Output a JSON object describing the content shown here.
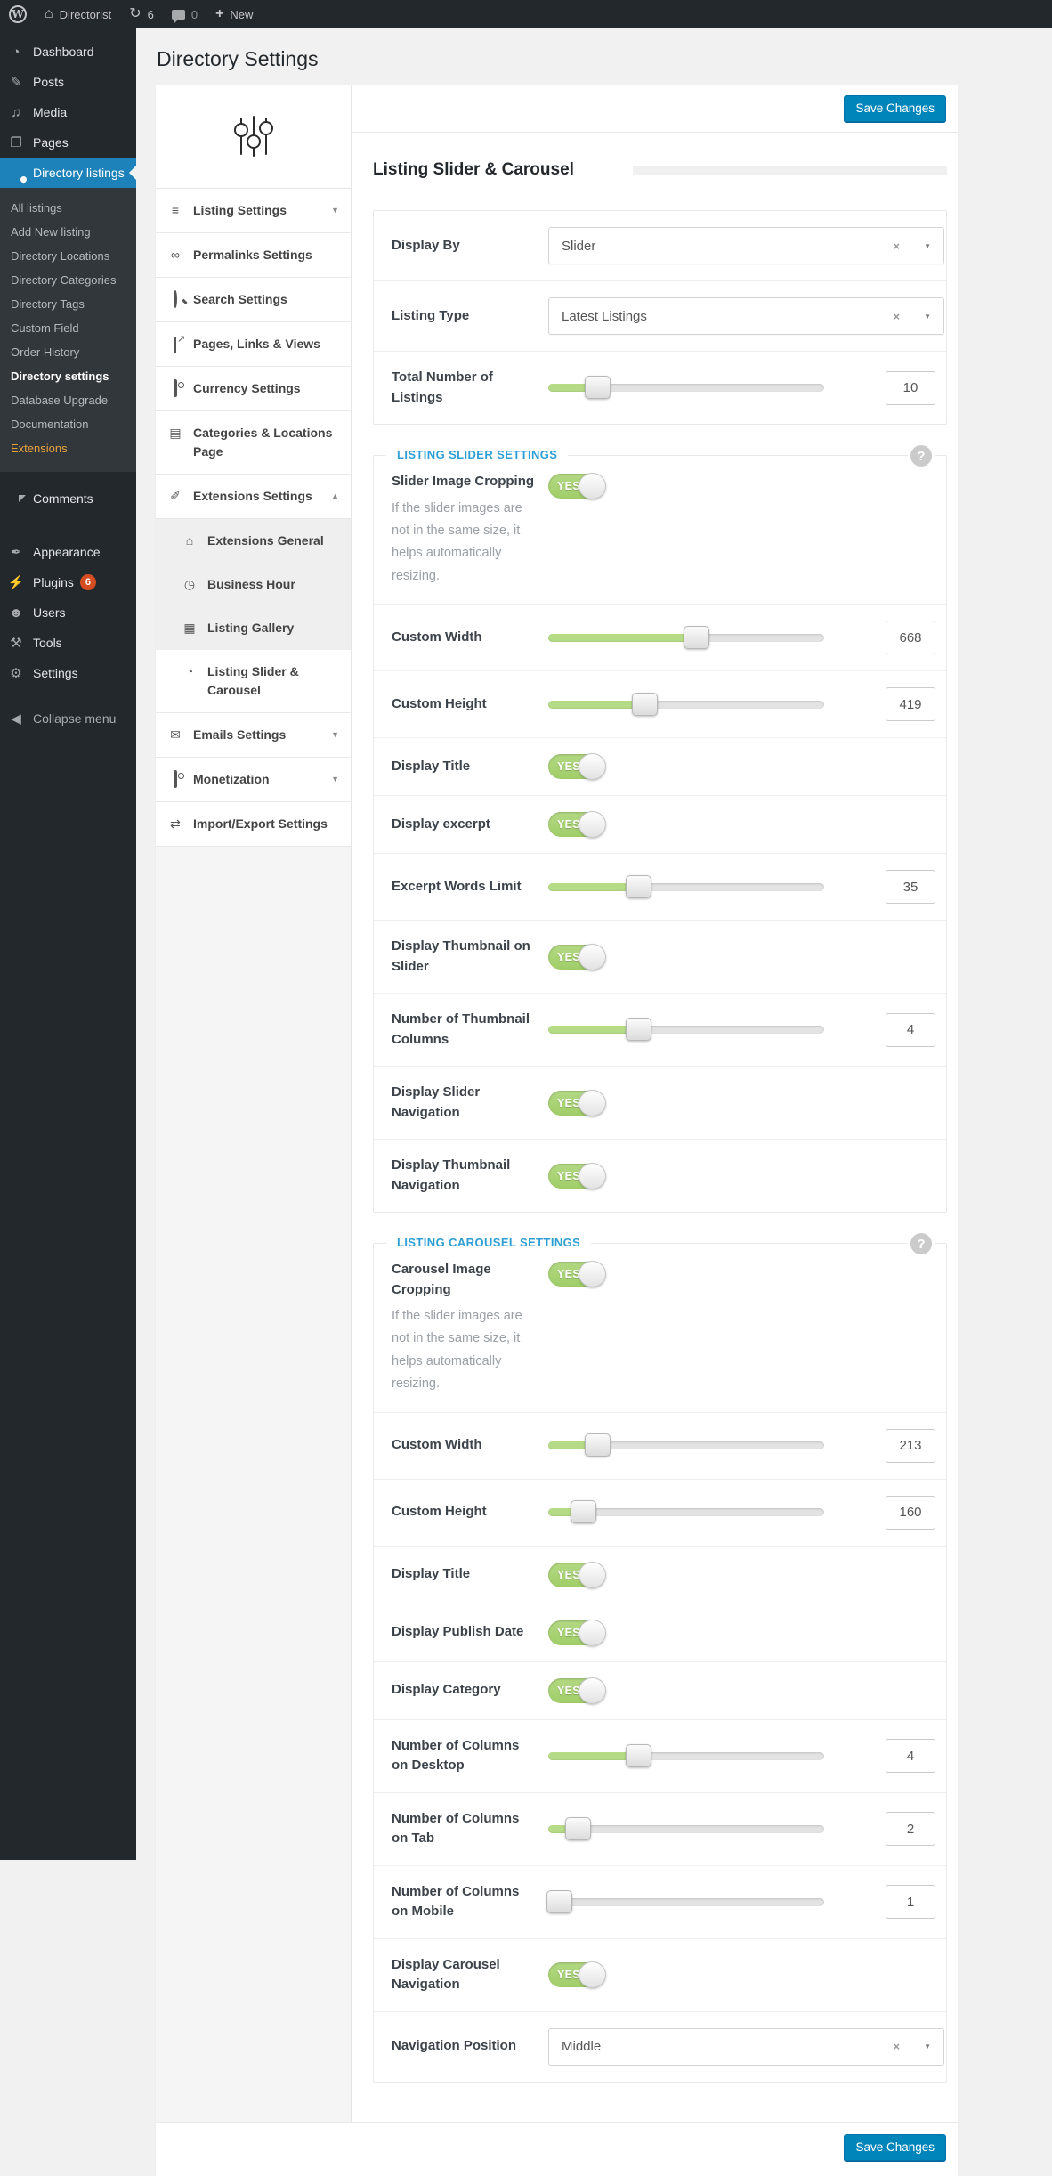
{
  "admin_bar": {
    "wp_logo": "W",
    "home_icon": "⌂",
    "site_name": "Directorist",
    "updates_icon": "↻",
    "updates_count": "6",
    "comments_count": "0",
    "plus": "+",
    "new_label": "New"
  },
  "page": {
    "title": "Directory Settings"
  },
  "sidebar": {
    "items": [
      {
        "id": "dashboard",
        "label": "Dashboard",
        "icon": "◔"
      },
      {
        "id": "posts",
        "label": "Posts",
        "icon": "✎"
      },
      {
        "id": "media",
        "label": "Media",
        "icon": "♫"
      },
      {
        "id": "pages",
        "label": "Pages",
        "icon": "❐"
      },
      {
        "id": "directory-listings",
        "label": "Directory listings",
        "icon_css": "pin",
        "active": true,
        "submenu": [
          "All listings",
          "Add New listing",
          "Directory Locations",
          "Directory Categories",
          "Directory Tags",
          "Custom Field",
          "Order History",
          "Directory settings",
          "Database Upgrade",
          "Documentation",
          "Extensions"
        ],
        "current_submenu": "Directory settings",
        "highlight_submenu": "Extensions"
      },
      {
        "id": "comments",
        "label": "Comments",
        "icon_css": "bubble"
      },
      {
        "id": "appearance",
        "label": "Appearance",
        "icon": "✒"
      },
      {
        "id": "plugins",
        "label": "Plugins",
        "icon": "⚡",
        "badge": "6"
      },
      {
        "id": "users",
        "label": "Users",
        "icon": "☻"
      },
      {
        "id": "tools",
        "label": "Tools",
        "icon": "⚒"
      },
      {
        "id": "settings",
        "label": "Settings",
        "icon": "⚙"
      },
      {
        "id": "collapse",
        "label": "Collapse menu",
        "icon": "◀"
      }
    ]
  },
  "settings_nav": {
    "items": [
      {
        "id": "listing-settings",
        "label": "Listing Settings",
        "icon": "≡",
        "chevron": "down"
      },
      {
        "id": "permalinks-settings",
        "label": "Permalinks Settings",
        "icon": "∞"
      },
      {
        "id": "search-settings",
        "label": "Search Settings",
        "icon_css": "search"
      },
      {
        "id": "pages-links-views",
        "label": "Pages, Links & Views",
        "icon_css": "chart"
      },
      {
        "id": "currency-settings",
        "label": "Currency Settings",
        "icon_css": "money"
      },
      {
        "id": "categories-locations-page",
        "label": "Categories & Locations Page",
        "icon": "▤"
      },
      {
        "id": "extensions-settings",
        "label": "Extensions Settings",
        "icon": "✐",
        "chevron": "up"
      },
      {
        "id": "extensions-general",
        "label": "Extensions General",
        "icon": "⌂",
        "sub": true
      },
      {
        "id": "business-hour",
        "label": "Business Hour",
        "icon": "◷",
        "sub": true
      },
      {
        "id": "listing-gallery",
        "label": "Listing Gallery",
        "icon": "▦",
        "sub": true
      },
      {
        "id": "listing-slider-carousel",
        "label": "Listing Slider & Carousel",
        "icon": "◔",
        "sub": true,
        "active": true
      },
      {
        "id": "emails-settings",
        "label": "Emails Settings",
        "icon": "✉",
        "chevron": "down"
      },
      {
        "id": "monetization",
        "label": "Monetization",
        "icon_css": "money",
        "chevron": "down"
      },
      {
        "id": "import-export-settings",
        "label": "Import/Export Settings",
        "icon": "⇄"
      }
    ]
  },
  "ui": {
    "clear": "×",
    "caret": "▼",
    "chevron_down": "▼",
    "chevron_up": "▲"
  },
  "content": {
    "save_button": "Save Changes",
    "heading": "Listing Slider & Carousel",
    "sections": [
      {
        "rows": [
          {
            "type": "select",
            "label": "Display By",
            "value": "Slider"
          },
          {
            "type": "select",
            "label": "Listing Type",
            "value": "Latest Listings"
          },
          {
            "type": "slider",
            "label": "Total Number of Listings",
            "value": "10",
            "fill": 18
          }
        ]
      },
      {
        "legend": "LISTING SLIDER SETTINGS",
        "help": "?",
        "rows": [
          {
            "type": "toggle",
            "label": "Slider Image Cropping",
            "value": "YES",
            "description": "If the slider images are not in the same size, it helps automatically resizing."
          },
          {
            "type": "slider",
            "label": "Custom Width",
            "value": "668",
            "fill": 54
          },
          {
            "type": "slider",
            "label": "Custom Height",
            "value": "419",
            "fill": 35
          },
          {
            "type": "toggle",
            "label": "Display Title",
            "value": "YES"
          },
          {
            "type": "toggle",
            "label": "Display excerpt",
            "value": "YES"
          },
          {
            "type": "slider",
            "label": "Excerpt Words Limit",
            "value": "35",
            "fill": 33
          },
          {
            "type": "toggle",
            "label": "Display Thumbnail on Slider",
            "value": "YES"
          },
          {
            "type": "slider",
            "label": "Number of Thumbnail Columns",
            "value": "4",
            "fill": 33
          },
          {
            "type": "toggle",
            "label": "Display Slider Navigation",
            "value": "YES"
          },
          {
            "type": "toggle",
            "label": "Display Thumbnail Navigation",
            "value": "YES"
          }
        ]
      },
      {
        "legend": "LISTING CAROUSEL SETTINGS",
        "help": "?",
        "rows": [
          {
            "type": "toggle",
            "label": "Carousel Image Cropping",
            "value": "YES",
            "description": "If the slider images are not in the same size, it helps automatically resizing."
          },
          {
            "type": "slider",
            "label": "Custom Width",
            "value": "213",
            "fill": 18
          },
          {
            "type": "slider",
            "label": "Custom Height",
            "value": "160",
            "fill": 13
          },
          {
            "type": "toggle",
            "label": "Display Title",
            "value": "YES"
          },
          {
            "type": "toggle",
            "label": "Display Publish Date",
            "value": "YES"
          },
          {
            "type": "toggle",
            "label": "Display Category",
            "value": "YES"
          },
          {
            "type": "slider",
            "label": "Number of Columns on Desktop",
            "value": "4",
            "fill": 33
          },
          {
            "type": "slider",
            "label": "Number of Columns on Tab",
            "value": "2",
            "fill": 11
          },
          {
            "type": "slider",
            "label": "Number of Columns on Mobile",
            "value": "1",
            "fill": 0
          },
          {
            "type": "toggle",
            "label": "Display Carousel Navigation",
            "value": "YES"
          },
          {
            "type": "select",
            "label": "Navigation Position",
            "value": "Middle"
          }
        ]
      }
    ]
  },
  "colors": {
    "accent_blue": "#2e9fd4",
    "button_blue": "#0085ba",
    "toggle_green": "#a9d573",
    "slider_green": "#b6db87",
    "active_menu_blue": "#1e82ba",
    "badge_red": "#d54e21",
    "extensions_orange": "#e6a23c"
  }
}
